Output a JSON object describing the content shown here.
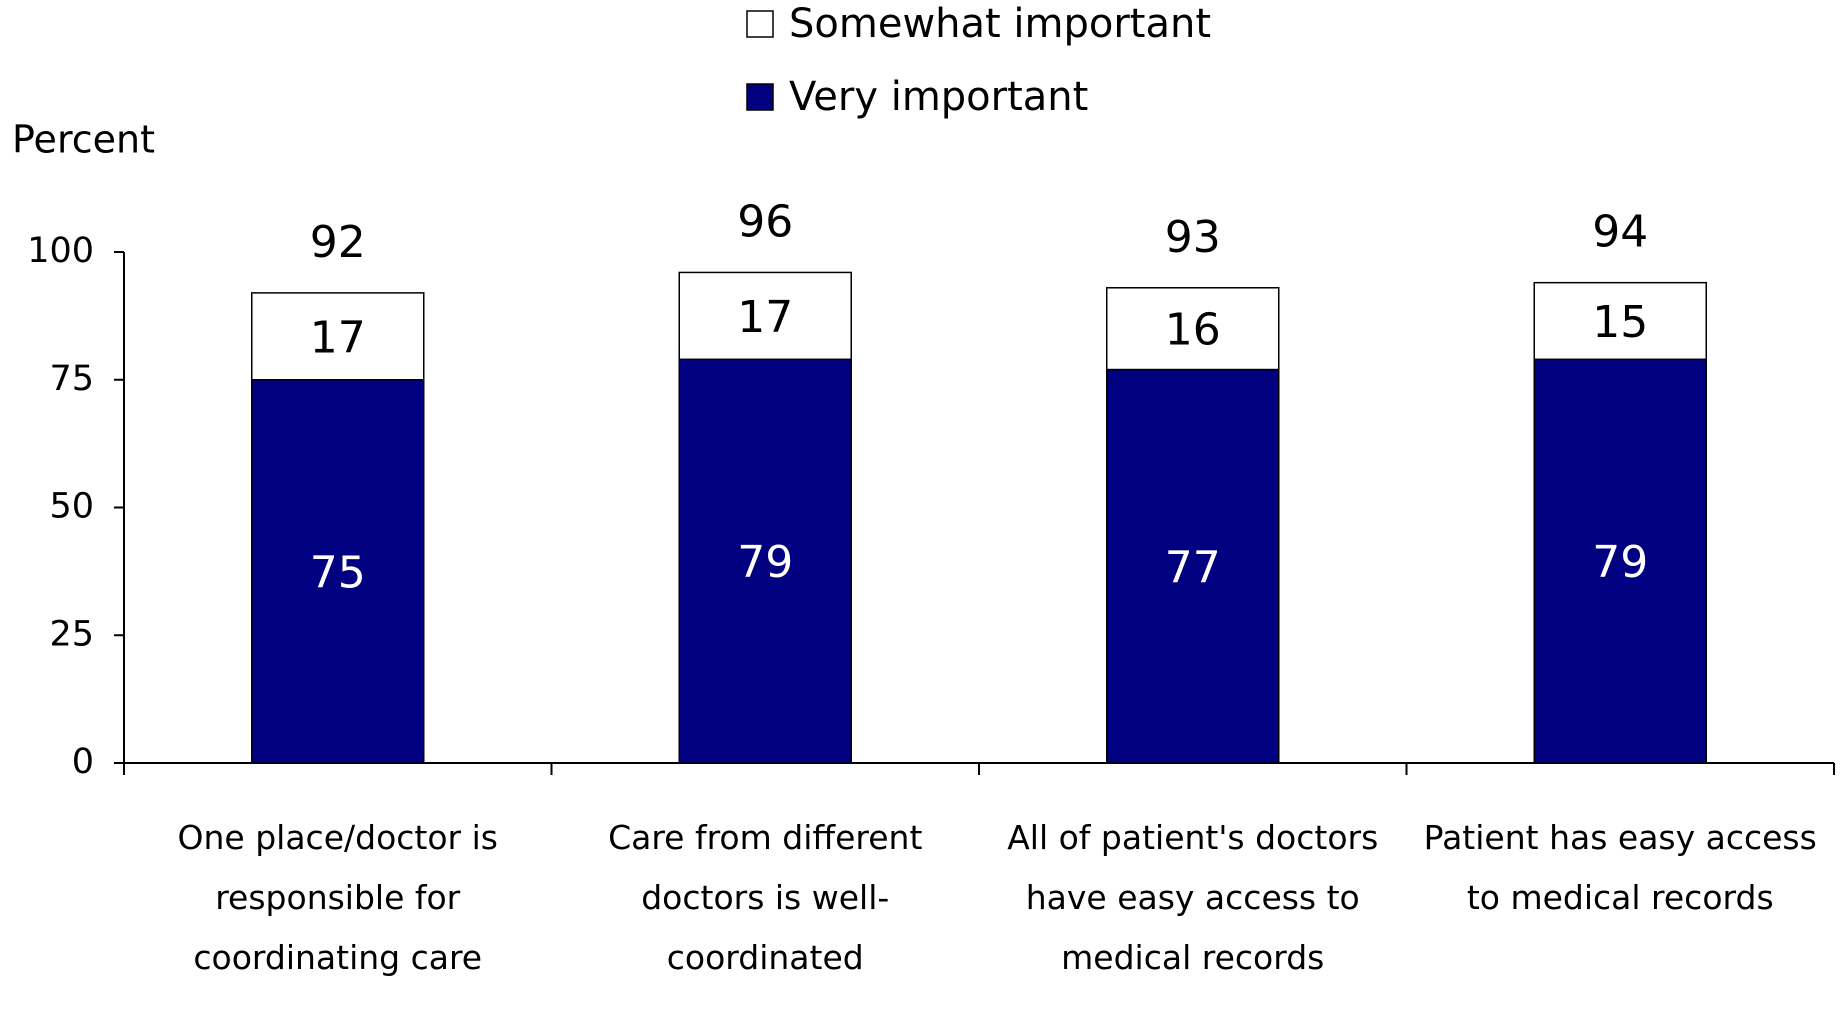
{
  "chart_data": {
    "type": "stacked_bar",
    "y_label": "Percent",
    "categories": [
      "One place/doctor is responsible for coordinating care",
      "Care from different doctors is well-coordinated",
      "All of patient's doctors have easy access to medical records",
      "Patient has easy access to medical records"
    ],
    "series": [
      {
        "name": "Very important",
        "color": "#000080",
        "values": [
          75,
          79,
          77,
          79
        ]
      },
      {
        "name": "Somewhat important",
        "color": "#ffffff",
        "values": [
          17,
          17,
          16,
          15
        ]
      }
    ],
    "totals": [
      92,
      96,
      93,
      94
    ],
    "ylim": [
      0,
      100
    ],
    "yticks": [
      0,
      25,
      50,
      75,
      100
    ],
    "grid": false,
    "legend": "top"
  }
}
